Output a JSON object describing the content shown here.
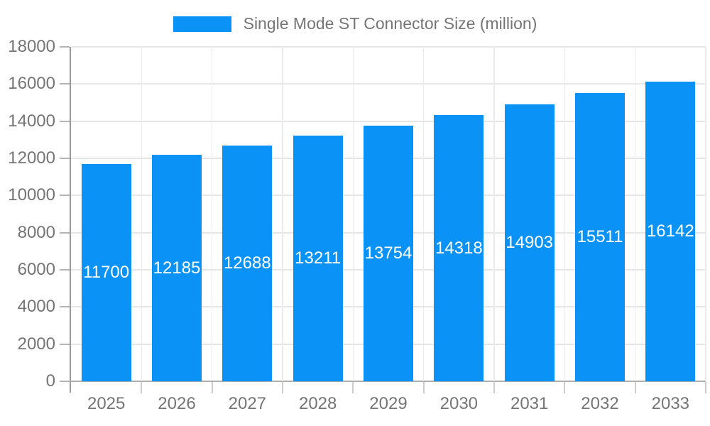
{
  "legend": {
    "label": "Single Mode ST Connector Size (million)"
  },
  "chart_data": {
    "type": "bar",
    "title": "Single Mode ST Connector Size (million)",
    "categories": [
      "2025",
      "2026",
      "2027",
      "2028",
      "2029",
      "2030",
      "2031",
      "2032",
      "2033"
    ],
    "series": [
      {
        "name": "Single Mode ST Connector Size (million)",
        "values": [
          11700,
          12185,
          12688,
          13211,
          13754,
          14318,
          14903,
          15511,
          16142
        ]
      }
    ],
    "xlabel": "",
    "ylabel": "",
    "ylim": [
      0,
      18000
    ],
    "ytick_step": 2000,
    "yticks": [
      0,
      2000,
      4000,
      6000,
      8000,
      10000,
      12000,
      14000,
      16000,
      18000
    ],
    "grid": true,
    "legend_position": "top-center",
    "value_labels": "inside-center"
  },
  "colors": {
    "bar": "#0b92f6",
    "value_label": "#ffffff",
    "axis_text": "#757575",
    "grid_line": "#e6e6e6",
    "axis_line": "#9a9a9a",
    "background": "#ffffff"
  }
}
